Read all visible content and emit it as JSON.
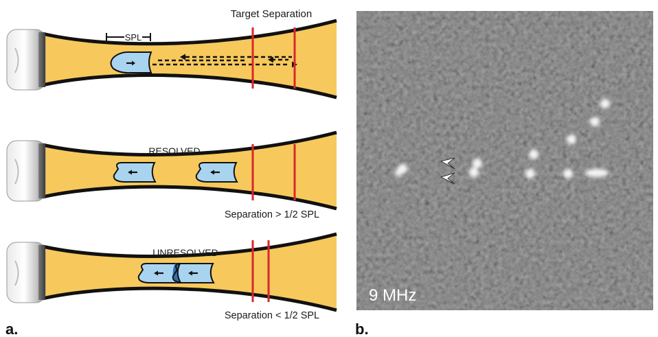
{
  "panel_a": {
    "letter": "a.",
    "top": {
      "heading": "Target Separation",
      "spl_label": "SPL"
    },
    "middle": {
      "heading": "RESOLVED",
      "caption": "Separation > 1/2 SPL"
    },
    "bottom": {
      "heading": "UNRESOLVED",
      "caption": "Separation < 1/2 SPL"
    }
  },
  "panel_b": {
    "letter": "b.",
    "frequency": "9 MHz"
  },
  "colors": {
    "tissue": "#f7c95c",
    "pulse": "#a9d4f0",
    "pulse_overlap": "#2f6fb0",
    "target_line": "#d9262b",
    "outline": "#111111",
    "ultrasound_bg": "#5e5e5e",
    "reflector": "#f4f4f4"
  },
  "icons": [
    "transducer-icon",
    "arrow-left-icon",
    "arrow-right-icon",
    "arrowhead-marker-icon"
  ]
}
